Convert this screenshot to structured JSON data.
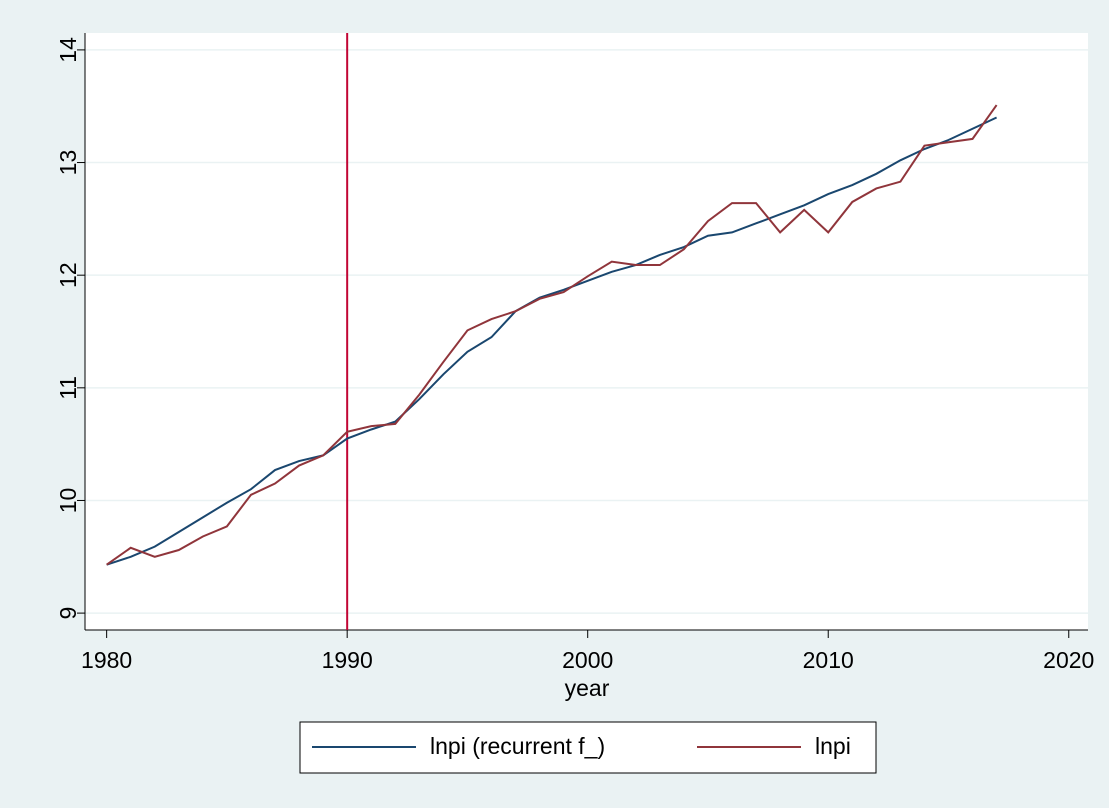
{
  "chart_data": {
    "type": "line",
    "x": [
      1980,
      1981,
      1982,
      1983,
      1984,
      1985,
      1986,
      1987,
      1988,
      1989,
      1990,
      1991,
      1992,
      1993,
      1994,
      1995,
      1996,
      1997,
      1998,
      1999,
      2000,
      2001,
      2002,
      2003,
      2004,
      2005,
      2006,
      2007,
      2008,
      2009,
      2010,
      2011,
      2012,
      2013,
      2014,
      2015,
      2016,
      2017
    ],
    "series": [
      {
        "name": "lnpi (recurrent f_)",
        "color": "#1a476f",
        "values": [
          9.43,
          9.5,
          9.59,
          9.72,
          9.85,
          9.98,
          10.1,
          10.27,
          10.35,
          10.4,
          10.55,
          10.63,
          10.7,
          10.9,
          11.12,
          11.32,
          11.45,
          11.68,
          11.8,
          11.87,
          11.95,
          12.03,
          12.09,
          12.18,
          12.25,
          12.35,
          12.38,
          12.46,
          12.54,
          12.62,
          12.72,
          12.8,
          12.9,
          13.02,
          13.12,
          13.2,
          13.3,
          13.4
        ]
      },
      {
        "name": "lnpi",
        "color": "#90353b",
        "values": [
          9.43,
          9.58,
          9.5,
          9.56,
          9.68,
          9.77,
          10.05,
          10.15,
          10.31,
          10.4,
          10.61,
          10.66,
          10.68,
          10.94,
          11.23,
          11.51,
          11.61,
          11.68,
          11.79,
          11.85,
          11.99,
          12.12,
          12.09,
          12.09,
          12.23,
          12.48,
          12.64,
          12.64,
          12.38,
          12.58,
          12.38,
          12.65,
          12.77,
          12.83,
          13.15,
          13.18,
          13.21,
          13.51
        ]
      }
    ],
    "x_label": "year",
    "xlim": [
      1979.1,
      2020.8
    ],
    "xticks": [
      1980,
      1990,
      2000,
      2010,
      2020
    ],
    "ylim": [
      8.85,
      14.15
    ],
    "yticks": [
      9,
      10,
      11,
      12,
      13,
      14
    ],
    "xline": 1990,
    "xline_color": "#c10534",
    "grid": true,
    "legend": "bottom"
  }
}
